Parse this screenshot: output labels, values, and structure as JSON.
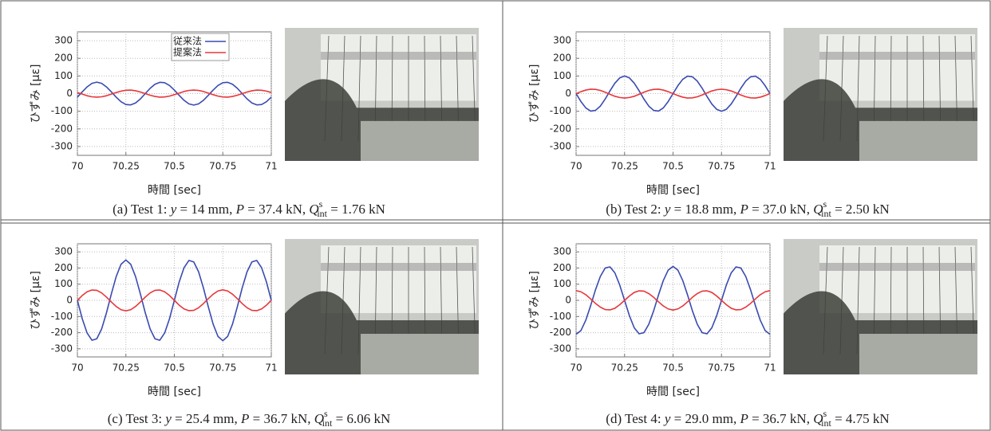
{
  "chart_data": [
    {
      "type": "line",
      "y_label": "ひずみ [με]",
      "x_label": "時間 [sec]",
      "caption": [
        "(a) Test 1: ",
        "y",
        " = 14 mm, ",
        "P",
        " = 37.4 kN, ",
        "Q",
        "s",
        "int",
        " = 1.76 kN"
      ],
      "xlim": [
        70,
        71
      ],
      "xticks": [
        70,
        70.25,
        70.5,
        70.75,
        71
      ],
      "ylim": [
        -350,
        350
      ],
      "yticks": [
        -300,
        -200,
        -100,
        0,
        100,
        200,
        300
      ],
      "grid": true,
      "x": [
        70,
        70.025,
        70.05,
        70.075,
        70.1,
        70.125,
        70.15,
        70.175,
        70.2,
        70.225,
        70.25,
        70.275,
        70.3,
        70.325,
        70.35,
        70.375,
        70.4,
        70.425,
        70.45,
        70.475,
        70.5,
        70.525,
        70.55,
        70.575,
        70.6,
        70.625,
        70.65,
        70.675,
        70.7,
        70.725,
        70.75,
        70.775,
        70.8,
        70.825,
        70.85,
        70.875,
        70.9,
        70.925,
        70.95,
        70.975,
        71
      ],
      "series": [
        {
          "name": "従来法",
          "color": "#3a4bb0",
          "values": [
            -20,
            10,
            38,
            58,
            65,
            58,
            38,
            10,
            -20,
            -46,
            -62,
            -64,
            -53,
            -30,
            0,
            30,
            53,
            64,
            62,
            46,
            20,
            -10,
            -38,
            -58,
            -65,
            -58,
            -38,
            -10,
            20,
            46,
            62,
            64,
            53,
            30,
            0,
            -30,
            -53,
            -64,
            -62,
            -46,
            -20
          ]
        },
        {
          "name": "提案法",
          "color": "#e8373a",
          "values": [
            6,
            -3,
            -12,
            -18,
            -20,
            -18,
            -12,
            -3,
            6,
            14,
            19,
            20,
            16,
            9,
            0,
            -9,
            -16,
            -20,
            -19,
            -14,
            -6,
            3,
            12,
            18,
            20,
            18,
            12,
            3,
            -6,
            -14,
            -19,
            -20,
            -16,
            -9,
            0,
            9,
            16,
            20,
            19,
            14,
            6
          ]
        }
      ]
    },
    {
      "type": "line",
      "y_label": "ひずみ [με]",
      "x_label": "時間 [sec]",
      "caption": [
        "(b) Test 2: ",
        "y",
        " = 18.8 mm, ",
        "P",
        " = 37.0 kN, ",
        "Q",
        "s",
        "int",
        " = 2.50 kN"
      ],
      "xlim": [
        70,
        71
      ],
      "xticks": [
        70,
        70.25,
        70.5,
        70.75,
        71
      ],
      "ylim": [
        -350,
        350
      ],
      "yticks": [
        -300,
        -200,
        -100,
        0,
        100,
        200,
        300
      ],
      "grid": true,
      "x": [
        70,
        70.025,
        70.05,
        70.075,
        70.1,
        70.125,
        70.15,
        70.175,
        70.2,
        70.225,
        70.25,
        70.275,
        70.3,
        70.325,
        70.35,
        70.375,
        70.4,
        70.425,
        70.45,
        70.475,
        70.5,
        70.525,
        70.55,
        70.575,
        70.6,
        70.625,
        70.65,
        70.675,
        70.7,
        70.725,
        70.75,
        70.775,
        70.8,
        70.825,
        70.85,
        70.875,
        70.9,
        70.925,
        70.95,
        70.975,
        71
      ],
      "series": [
        {
          "color": "#3a4bb0",
          "values": [
            0,
            -45,
            -81,
            -99,
            -95,
            -71,
            -31,
            16,
            59,
            89,
            100,
            89,
            59,
            16,
            -31,
            -71,
            -95,
            -99,
            -81,
            -45,
            0,
            45,
            81,
            99,
            95,
            71,
            31,
            -16,
            -59,
            -89,
            -100,
            -89,
            -59,
            -16,
            31,
            71,
            95,
            99,
            81,
            45,
            0
          ]
        },
        {
          "color": "#e8373a",
          "values": [
            0,
            11,
            20,
            25,
            24,
            18,
            8,
            -4,
            -15,
            -22,
            -25,
            -22,
            -15,
            -4,
            8,
            18,
            24,
            25,
            20,
            11,
            0,
            -11,
            -20,
            -25,
            -24,
            -18,
            -8,
            4,
            15,
            22,
            25,
            22,
            15,
            4,
            -8,
            -18,
            -24,
            -25,
            -20,
            -11,
            0
          ]
        }
      ]
    },
    {
      "type": "line",
      "y_label": "ひずみ [με]",
      "x_label": "時間 [sec]",
      "caption": [
        "(c) Test 3: ",
        "y",
        " = 25.4 mm, ",
        "P",
        " = 36.7 kN, ",
        "Q",
        "s",
        "int",
        " = 6.06 kN"
      ],
      "xlim": [
        70,
        71
      ],
      "xticks": [
        70,
        70.25,
        70.5,
        70.75,
        71
      ],
      "ylim": [
        -350,
        350
      ],
      "yticks": [
        -300,
        -200,
        -100,
        0,
        100,
        200,
        300
      ],
      "grid": true,
      "x": [
        70,
        70.025,
        70.05,
        70.075,
        70.1,
        70.125,
        70.15,
        70.175,
        70.2,
        70.225,
        70.25,
        70.275,
        70.3,
        70.325,
        70.35,
        70.375,
        70.4,
        70.425,
        70.45,
        70.475,
        70.5,
        70.525,
        70.55,
        70.575,
        70.6,
        70.625,
        70.65,
        70.675,
        70.7,
        70.725,
        70.75,
        70.775,
        70.8,
        70.825,
        70.85,
        70.875,
        70.9,
        70.925,
        70.95,
        70.975,
        71
      ],
      "series": [
        {
          "color": "#3a4bb0",
          "values": [
            0,
            -114,
            -202,
            -247,
            -238,
            -177,
            -77,
            39,
            147,
            223,
            250,
            223,
            147,
            39,
            -77,
            -177,
            -238,
            -247,
            -202,
            -114,
            0,
            114,
            202,
            247,
            238,
            177,
            77,
            -39,
            -147,
            -223,
            -250,
            -223,
            -147,
            -39,
            77,
            177,
            238,
            247,
            202,
            114,
            0
          ]
        },
        {
          "color": "#e8373a",
          "values": [
            0,
            30,
            53,
            64,
            62,
            46,
            20,
            -10,
            -38,
            -58,
            -65,
            -58,
            -38,
            -10,
            20,
            46,
            62,
            64,
            53,
            30,
            0,
            -30,
            -53,
            -64,
            -62,
            -46,
            -20,
            10,
            38,
            58,
            65,
            58,
            38,
            10,
            -20,
            -46,
            -62,
            -64,
            -53,
            -30,
            0
          ]
        }
      ]
    },
    {
      "type": "line",
      "y_label": "ひずみ [με]",
      "x_label": "時間 [sec]",
      "caption": [
        "(d) Test 4: ",
        "y",
        " = 29.0 mm, ",
        "P",
        " = 36.7 kN, ",
        "Q",
        "s",
        "int",
        " = 4.75 kN"
      ],
      "xlim": [
        70,
        71
      ],
      "xticks": [
        70,
        70.25,
        70.5,
        70.75,
        71
      ],
      "ylim": [
        -350,
        350
      ],
      "yticks": [
        -300,
        -200,
        -100,
        0,
        100,
        200,
        300
      ],
      "grid": true,
      "x": [
        70,
        70.025,
        70.05,
        70.075,
        70.1,
        70.125,
        70.15,
        70.175,
        70.2,
        70.225,
        70.25,
        70.275,
        70.3,
        70.325,
        70.35,
        70.375,
        70.4,
        70.425,
        70.45,
        70.475,
        70.5,
        70.525,
        70.55,
        70.575,
        70.6,
        70.625,
        70.65,
        70.675,
        70.7,
        70.725,
        70.75,
        70.775,
        70.8,
        70.825,
        70.85,
        70.875,
        70.9,
        70.925,
        70.95,
        70.975,
        71
      ],
      "series": [
        {
          "color": "#3a4bb0",
          "values": [
            -210,
            -187,
            -123,
            -33,
            65,
            148,
            200,
            207,
            170,
            95,
            0,
            -95,
            -170,
            -207,
            -200,
            -148,
            -65,
            33,
            123,
            187,
            210,
            187,
            123,
            33,
            -65,
            -148,
            -200,
            -207,
            -170,
            -95,
            0,
            95,
            170,
            207,
            200,
            148,
            65,
            -33,
            -123,
            -187,
            -210
          ]
        },
        {
          "color": "#e8373a",
          "values": [
            60,
            53,
            35,
            9,
            -19,
            -42,
            -57,
            -59,
            -49,
            -27,
            0,
            27,
            49,
            59,
            57,
            42,
            19,
            -9,
            -35,
            -53,
            -60,
            -53,
            -35,
            -9,
            19,
            42,
            57,
            59,
            49,
            27,
            0,
            -27,
            -49,
            -59,
            -57,
            -42,
            -19,
            9,
            35,
            53,
            60
          ]
        }
      ]
    }
  ]
}
